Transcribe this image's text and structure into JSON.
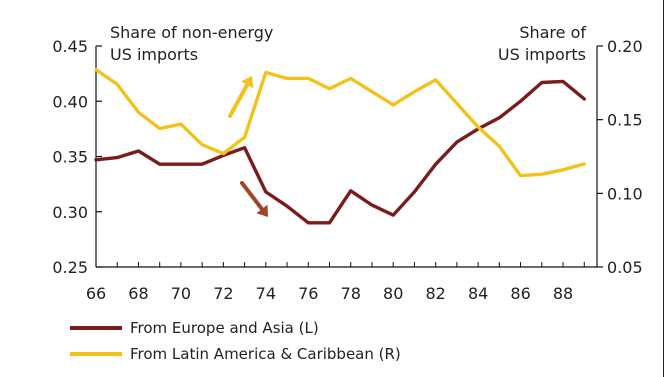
{
  "chart_data": {
    "type": "line",
    "title": "",
    "left_axis_title": [
      "Share of non-energy",
      "US imports"
    ],
    "right_axis_title": [
      "Share of",
      "US imports"
    ],
    "x_ticks": [
      "66",
      "68",
      "70",
      "72",
      "74",
      "76",
      "78",
      "80",
      "82",
      "84",
      "86",
      "88"
    ],
    "left_ticks": [
      "0.45",
      "0.40",
      "0.35",
      "0.30",
      "0.25"
    ],
    "right_ticks": [
      "0.20",
      "0.15",
      "0.10",
      "0.05"
    ],
    "xlim": [
      1966,
      1989.6
    ],
    "ylim_left": [
      0.25,
      0.45
    ],
    "ylim_right": [
      0.05,
      0.2
    ],
    "series": [
      {
        "name": "From Europe and Asia (L)",
        "axis": "left",
        "color": "#7a1c1c",
        "x": [
          1966,
          1967,
          1968,
          1969,
          1970,
          1971,
          1972,
          1973,
          1974,
          1975,
          1976,
          1977,
          1978,
          1979,
          1980,
          1981,
          1982,
          1983,
          1984,
          1985,
          1986,
          1987,
          1988,
          1989
        ],
        "values": [
          0.347,
          0.349,
          0.355,
          0.343,
          0.343,
          0.343,
          0.351,
          0.358,
          0.318,
          0.305,
          0.29,
          0.29,
          0.319,
          0.306,
          0.297,
          0.318,
          0.343,
          0.363,
          0.375,
          0.385,
          0.4,
          0.417,
          0.418,
          0.402
        ]
      },
      {
        "name": "From Latin America & Caribbean (R)",
        "axis": "right",
        "color": "#f2c21b",
        "x": [
          1966,
          1967,
          1968,
          1969,
          1970,
          1971,
          1972,
          1973,
          1974,
          1975,
          1976,
          1977,
          1978,
          1979,
          1980,
          1981,
          1982,
          1983,
          1984,
          1985,
          1986,
          1987,
          1988,
          1989
        ],
        "values": [
          0.184,
          0.174,
          0.155,
          0.144,
          0.147,
          0.133,
          0.127,
          0.138,
          0.182,
          0.178,
          0.178,
          0.171,
          0.178,
          0.169,
          0.16,
          0.169,
          0.177,
          0.161,
          0.145,
          0.132,
          0.112,
          0.113,
          0.116,
          0.12
        ]
      }
    ],
    "annotations": [
      {
        "type": "arrow",
        "color": "#f2c21b",
        "direction": "up-right"
      },
      {
        "type": "arrow",
        "color": "#a0452a",
        "direction": "down-right"
      }
    ],
    "grid": false,
    "legend_position": "bottom"
  }
}
